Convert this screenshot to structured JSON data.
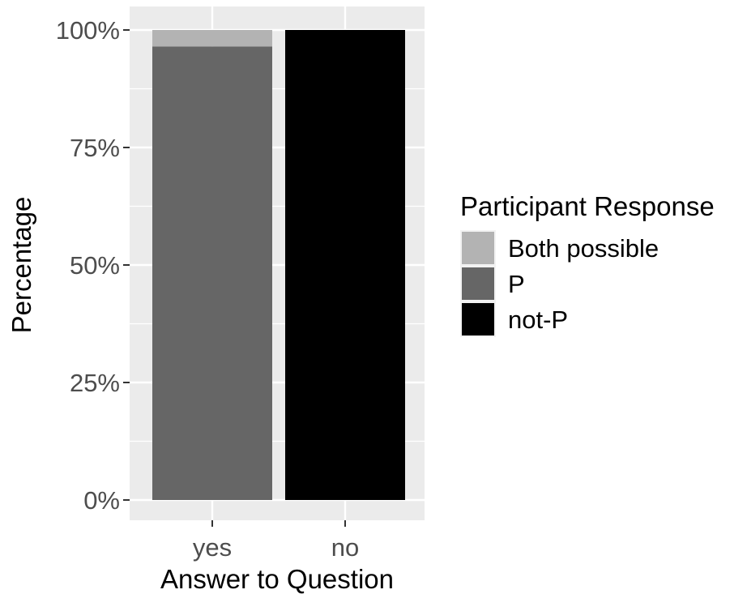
{
  "chart_data": {
    "type": "bar",
    "stacked": true,
    "percent": true,
    "categories": [
      "yes",
      "no"
    ],
    "series": [
      {
        "name": "Both possible",
        "values": [
          3.5,
          0
        ],
        "color": "#b3b3b3"
      },
      {
        "name": "P",
        "values": [
          96.5,
          0
        ],
        "color": "#666666"
      },
      {
        "name": "not-P",
        "values": [
          0,
          100
        ],
        "color": "#000000"
      }
    ],
    "xlabel": "Answer to Question",
    "ylabel": "Percentage",
    "ylim": [
      0,
      100
    ],
    "yticks": [
      0,
      25,
      50,
      75,
      100
    ],
    "ytick_labels": [
      "0%",
      "25%",
      "50%",
      "75%",
      "100%"
    ],
    "grid": true,
    "panel_background": "#ebebeb",
    "legend": {
      "title": "Participant Response",
      "position": "right",
      "entries": [
        "Both possible",
        "P",
        "not-P"
      ]
    }
  }
}
